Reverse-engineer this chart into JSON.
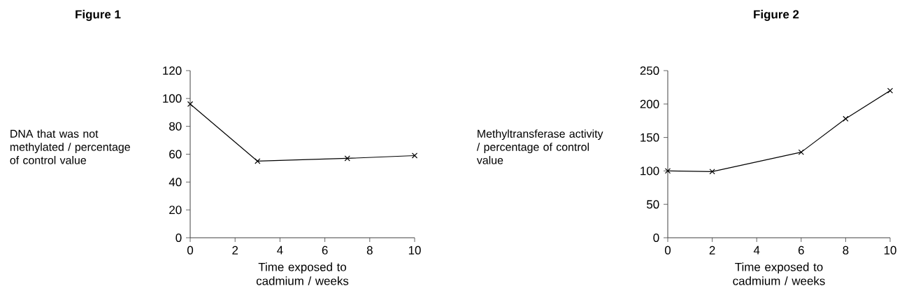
{
  "chart_data": [
    {
      "type": "line",
      "title": "Figure 1",
      "xlabel": "Time exposed to cadmium / weeks",
      "ylabel": "DNA that was not methylated / percentage of control value",
      "x": [
        0,
        3,
        7,
        10
      ],
      "series": [
        {
          "color": "#000000",
          "values": [
            96,
            55,
            57,
            59
          ]
        }
      ],
      "xlim": [
        0,
        10
      ],
      "xticks": [
        0,
        2,
        4,
        6,
        8,
        10
      ],
      "ylim": [
        0,
        120
      ],
      "yticks": [
        0,
        20,
        40,
        60,
        80,
        100,
        120
      ],
      "marker": "cross",
      "grid": false
    },
    {
      "type": "line",
      "title": "Figure 2",
      "xlabel": "Time exposed to cadmium / weeks",
      "ylabel": "Methyltransferase activity / percentage of control value",
      "x": [
        0,
        2,
        6,
        8,
        10
      ],
      "series": [
        {
          "color": "#000000",
          "values": [
            100,
            99,
            128,
            178,
            220
          ]
        }
      ],
      "xlim": [
        0,
        10
      ],
      "xticks": [
        0,
        2,
        4,
        6,
        8,
        10
      ],
      "ylim": [
        0,
        250
      ],
      "yticks": [
        0,
        50,
        100,
        150,
        200,
        250
      ],
      "marker": "cross",
      "grid": false
    }
  ]
}
